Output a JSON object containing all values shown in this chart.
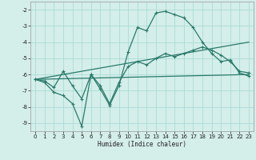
{
  "xlabel": "Humidex (Indice chaleur)",
  "xlim": [
    -0.5,
    23.5
  ],
  "ylim": [
    -9.5,
    -1.5
  ],
  "yticks": [
    -9,
    -8,
    -7,
    -6,
    -5,
    -4,
    -3,
    -2
  ],
  "xticks": [
    0,
    1,
    2,
    3,
    4,
    5,
    6,
    7,
    8,
    9,
    10,
    11,
    12,
    13,
    14,
    15,
    16,
    17,
    18,
    19,
    20,
    21,
    22,
    23
  ],
  "bg_color": "#d4eeea",
  "line_color": "#2a7a6a",
  "grid_color": "#aaddd5",
  "line1_x": [
    0,
    1,
    2,
    3,
    4,
    5,
    6,
    7,
    8,
    9,
    10,
    11,
    12,
    13,
    14,
    15,
    16,
    17,
    18,
    19,
    20,
    21,
    22,
    23
  ],
  "line1_y": [
    -6.3,
    -6.5,
    -7.1,
    -7.3,
    -7.8,
    -9.2,
    -6.0,
    -6.9,
    -7.9,
    -6.7,
    -4.6,
    -3.1,
    -3.3,
    -2.2,
    -2.1,
    -2.3,
    -2.5,
    -3.1,
    -4.0,
    -4.7,
    -5.2,
    -5.1,
    -5.9,
    -6.1
  ],
  "line2_x": [
    0,
    1,
    2,
    3,
    4,
    5,
    6,
    7,
    8,
    9,
    10,
    11,
    12,
    13,
    14,
    15,
    16,
    17,
    18,
    19,
    20,
    21,
    22,
    23
  ],
  "line2_y": [
    -6.3,
    -6.4,
    -6.8,
    -5.8,
    -6.7,
    -7.5,
    -6.0,
    -6.7,
    -7.8,
    -6.5,
    -5.5,
    -5.2,
    -5.4,
    -5.0,
    -4.7,
    -4.9,
    -4.7,
    -4.5,
    -4.3,
    -4.5,
    -4.8,
    -5.2,
    -5.8,
    -5.9
  ],
  "line3_x": [
    0,
    23
  ],
  "line3_y": [
    -6.3,
    -6.0
  ],
  "line4_x": [
    0,
    23
  ],
  "line4_y": [
    -6.3,
    -4.0
  ]
}
